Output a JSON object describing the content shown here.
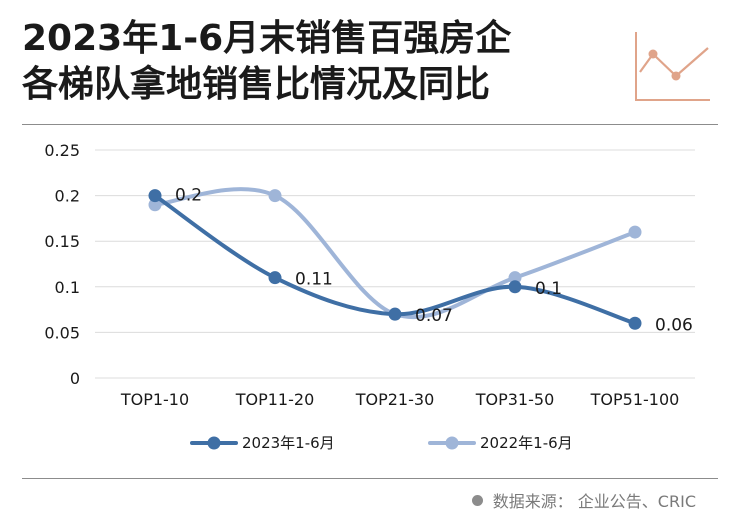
{
  "header": {
    "title_line1": "2023年1-6月末销售百强房企",
    "title_line2": "各梯队拿地销售比情况及同比"
  },
  "source": {
    "text": "数据来源：  企业公告、CRIC"
  },
  "colors": {
    "series_2023": "#3f6fa5",
    "series_2022": "#9fb5d8",
    "logo": "#e0a48a",
    "grid": "#dcdcdc",
    "rule": "#8c8c8c"
  },
  "chart_data": {
    "type": "line",
    "categories": [
      "TOP1-10",
      "TOP11-20",
      "TOP21-30",
      "TOP31-50",
      "TOP51-100"
    ],
    "ylim": [
      0,
      0.25
    ],
    "yticks": [
      "0",
      "0.05",
      "0.1",
      "0.15",
      "0.2",
      "0.25"
    ],
    "yticks_values": [
      0,
      0.05,
      0.1,
      0.15,
      0.2,
      0.25
    ],
    "grid": "horizontal",
    "legend_position": "bottom",
    "series": [
      {
        "name": "2023年1-6月",
        "values": [
          0.2,
          0.11,
          0.07,
          0.1,
          0.06
        ],
        "data_labels": [
          "0.2",
          "0.11",
          "0.07",
          "0.1",
          "0.06"
        ],
        "smooth": false
      },
      {
        "name": "2022年1-6月",
        "values": [
          0.19,
          0.2,
          0.07,
          0.11,
          0.16
        ],
        "data_labels": [
          "",
          "",
          "",
          "",
          ""
        ],
        "smooth": true
      }
    ]
  }
}
